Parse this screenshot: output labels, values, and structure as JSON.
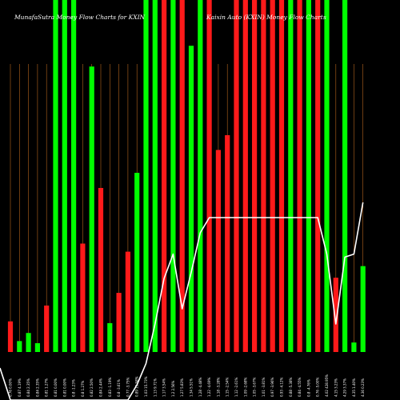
{
  "header": {
    "left_title": "MunafaSutra Money Flow Charts for KXIN",
    "right_title": "Kaixin Auto (KXIN) Money Flow Charts"
  },
  "colors": {
    "background": "#000000",
    "up_bar": "#00ff00",
    "down_bar": "#ff1a1a",
    "grid_line": "#b5651d",
    "price_line": "#ffffff"
  },
  "chart_data": {
    "type": "bar",
    "grid": true,
    "volume_scale": [
      0,
      100
    ],
    "price_scale": [
      0,
      100
    ],
    "categories": [
      "0.76 0.00%",
      "0.87 4.19%",
      "0.84 2.35%",
      "0.84 2.35%",
      "0.81 1.27%",
      "0.81 0.00%",
      "0.81 0.00%",
      "0.8 -1.23%",
      "0.8 1.27%",
      "0.82 2.50%",
      "0.84 2.44%",
      "0.83 -1.19%",
      "0.8 -3.61%",
      "0.77 -3.75%",
      "0.89 15.58%",
      "1.03 15.73%",
      "1.13 9.71%",
      "1.17 3.54%",
      "1.2 2.56%",
      "1.27 5.83%",
      "1.34 5.51%",
      "1.28 -4.48%",
      "1.22 -4.69%",
      "1.18 -3.28%",
      "1.15 -2.54%",
      "1.12 -2.61%",
      "1.09 -2.68%",
      "1.05 -3.67%",
      "1.01 -3.81%",
      "0.97 -3.96%",
      "0.93 -4.12%",
      "0.88 -5.38%",
      "0.84 -4.55%",
      "0.8 -4.76%",
      "0.76 -5.00%",
      "4.02 428.95%",
      "4.15 3.23%",
      "4.29 3.37%",
      "4.35 1.40%",
      "4.36 0.23%"
    ],
    "series": [
      {
        "kind": "money_flow_volume",
        "colors": [
          "red",
          "green",
          "green",
          "green",
          "red",
          "green",
          "green",
          "green",
          "red",
          "green",
          "red",
          "green",
          "red",
          "red",
          "green",
          "green",
          "green",
          "red",
          "green",
          "red",
          "green",
          "green",
          "red",
          "red",
          "red",
          "red",
          "red",
          "red",
          "red",
          "red",
          "red",
          "green",
          "red",
          "green",
          "red",
          "green",
          "red",
          "green",
          "green",
          "green"
        ],
        "values": [
          8.7,
          3.1,
          5.4,
          2.5,
          13.2,
          100,
          100,
          100,
          30.8,
          81.1,
          46.6,
          8.2,
          16.8,
          28.5,
          50.9,
          100,
          100,
          100,
          100,
          100,
          87,
          100,
          100,
          57.4,
          61.6,
          100,
          100,
          100,
          100,
          100,
          100,
          100,
          100,
          100,
          100,
          100,
          21.1,
          100,
          2.7,
          24.4
        ]
      },
      {
        "kind": "price_line",
        "values": [
          0,
          0,
          0,
          0,
          0,
          0,
          0,
          0,
          0,
          0,
          0,
          0,
          0,
          0,
          5,
          12,
          25,
          40,
          48,
          30,
          42,
          55,
          60,
          60,
          60,
          60,
          60,
          60,
          60,
          60,
          60,
          60,
          60,
          60,
          60,
          48,
          25,
          47,
          48,
          65
        ]
      }
    ]
  }
}
